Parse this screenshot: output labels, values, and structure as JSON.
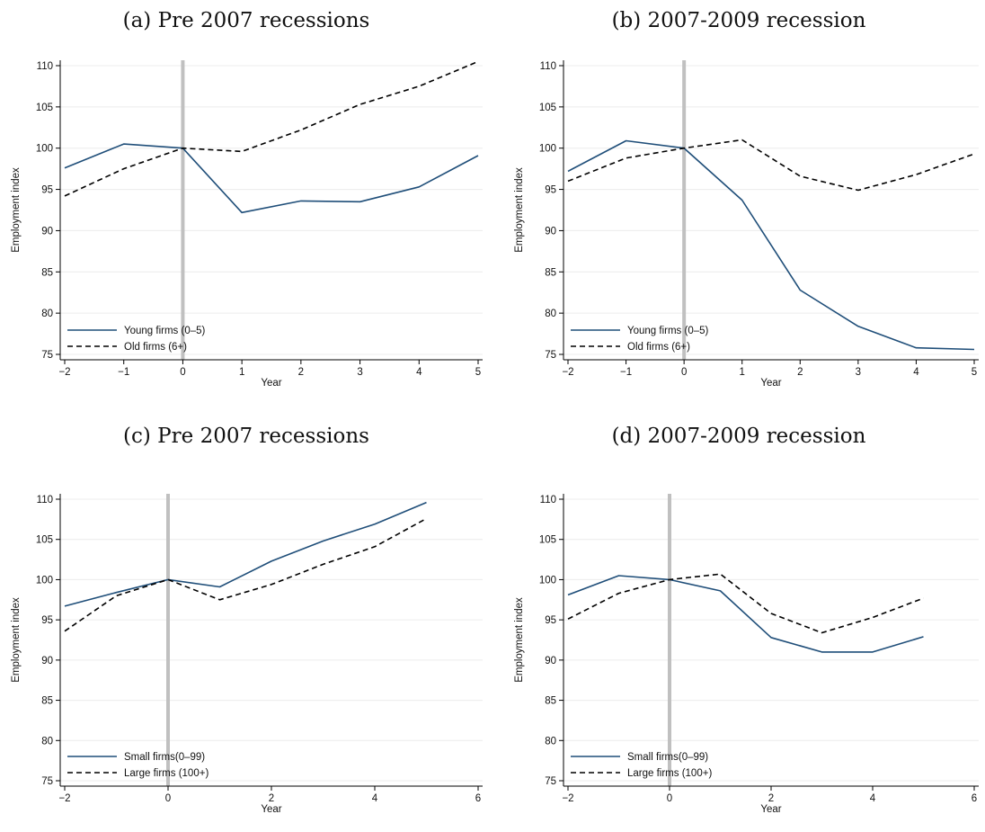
{
  "colors": {
    "solid": "#1f4e79",
    "dashed": "#000000",
    "grid": "#ececec",
    "zero_line": "#c0c0c0"
  },
  "chart_data": [
    {
      "type": "line",
      "title": "(a) Pre 2007 recessions",
      "xlabel": "Year",
      "ylabel": "Employment index",
      "xlim": [
        -2,
        5
      ],
      "xticks": [
        -2,
        -1,
        0,
        1,
        2,
        3,
        4,
        5
      ],
      "ylim": [
        75,
        110
      ],
      "yticks": [
        75,
        80,
        85,
        90,
        95,
        100,
        105,
        110
      ],
      "grid": true,
      "vline_x": 0,
      "legend_position": "bottom-left",
      "series": [
        {
          "name": "Young firms (0–5)",
          "style": "solid",
          "x": [
            -2,
            -1,
            0,
            1,
            2,
            3,
            4,
            5
          ],
          "y": [
            97.6,
            100.5,
            100.0,
            92.2,
            93.6,
            93.5,
            95.3,
            99.1
          ]
        },
        {
          "name": "Old firms (6+)",
          "style": "dashed",
          "x": [
            -2,
            -1,
            0,
            1,
            2,
            3,
            4,
            5
          ],
          "y": [
            94.2,
            97.5,
            100.0,
            99.6,
            102.2,
            105.3,
            107.5,
            110.5
          ]
        }
      ]
    },
    {
      "type": "line",
      "title": "(b) 2007-2009 recession",
      "xlabel": "Year",
      "ylabel": "Employment index",
      "xlim": [
        -2,
        5
      ],
      "xticks": [
        -2,
        -1,
        0,
        1,
        2,
        3,
        4,
        5
      ],
      "ylim": [
        75,
        110
      ],
      "yticks": [
        75,
        80,
        85,
        90,
        95,
        100,
        105,
        110
      ],
      "grid": true,
      "vline_x": 0,
      "legend_position": "bottom-left",
      "series": [
        {
          "name": "Young firms (0–5)",
          "style": "solid",
          "x": [
            -2,
            -1,
            0,
            1,
            2,
            3,
            4,
            5
          ],
          "y": [
            97.2,
            100.9,
            100.0,
            93.7,
            82.8,
            78.4,
            75.8,
            75.6
          ]
        },
        {
          "name": "Old firms (6+)",
          "style": "dashed",
          "x": [
            -2,
            -1,
            0,
            1,
            2,
            3,
            4,
            5
          ],
          "y": [
            96.0,
            98.8,
            100.0,
            101.0,
            96.6,
            94.9,
            96.8,
            99.3
          ]
        }
      ]
    },
    {
      "type": "line",
      "title": "(c) Pre 2007 recessions",
      "xlabel": "Year",
      "ylabel": "Employment index",
      "xlim": [
        -2,
        6
      ],
      "xticks": [
        -2,
        0,
        2,
        4,
        6
      ],
      "ylim": [
        75,
        110
      ],
      "yticks": [
        75,
        80,
        85,
        90,
        95,
        100,
        105,
        110
      ],
      "grid": true,
      "vline_x": 0,
      "legend_position": "bottom-left",
      "series": [
        {
          "name": "Small firms(0–99)",
          "style": "solid",
          "x": [
            -2,
            -1,
            0,
            1,
            2,
            3,
            4,
            5
          ],
          "y": [
            96.7,
            98.4,
            100.0,
            99.1,
            102.3,
            104.8,
            106.9,
            109.6
          ]
        },
        {
          "name": "Large firms (100+)",
          "style": "dashed",
          "x": [
            -2,
            -1,
            0,
            1,
            2,
            3,
            4,
            5
          ],
          "y": [
            93.6,
            98.0,
            100.0,
            97.5,
            99.4,
            101.9,
            104.1,
            107.6
          ]
        }
      ]
    },
    {
      "type": "line",
      "title": "(d) 2007-2009 recession",
      "xlabel": "Year",
      "ylabel": "Employment index",
      "xlim": [
        -2,
        6
      ],
      "xticks": [
        -2,
        0,
        2,
        4,
        6
      ],
      "ylim": [
        75,
        110
      ],
      "yticks": [
        75,
        80,
        85,
        90,
        95,
        100,
        105,
        110
      ],
      "grid": true,
      "vline_x": 0,
      "legend_position": "bottom-left",
      "series": [
        {
          "name": "Small firms(0–99)",
          "style": "solid",
          "x": [
            -2,
            -1,
            0,
            1,
            2,
            3,
            4,
            5
          ],
          "y": [
            98.1,
            100.5,
            100.0,
            98.6,
            92.8,
            91.0,
            91.0,
            92.9
          ]
        },
        {
          "name": "Large firms (100+)",
          "style": "dashed",
          "x": [
            -2,
            -1,
            0,
            1,
            2,
            3,
            4,
            5
          ],
          "y": [
            95.1,
            98.3,
            100.0,
            100.7,
            95.8,
            93.4,
            95.3,
            97.7
          ]
        }
      ]
    }
  ]
}
